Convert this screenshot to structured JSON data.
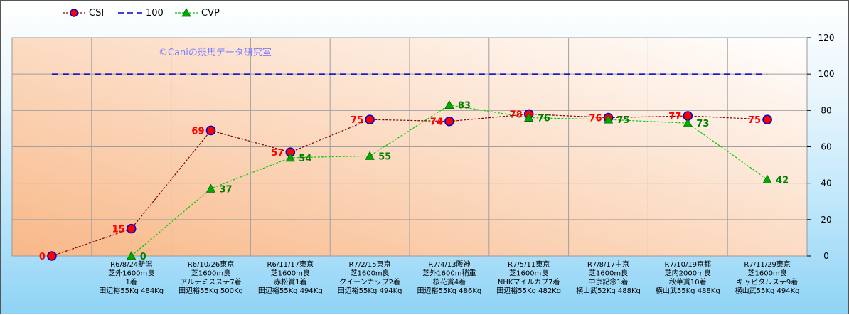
{
  "chart_data": {
    "type": "line",
    "watermark": "©Caniの競馬データ研究室",
    "categories": [
      "",
      "R6/8/24新潟|芝外1600m良|1着|田辺裕55Kg 484Kg",
      "R6/10/26東京|芝1600m良|アルテミスステ7着|田辺裕55Kg 500Kg",
      "R6/11/17東京|芝1600m良|赤松賞1着|田辺裕55Kg 494Kg",
      "R7/2/15東京|芝1600m良|クイーンカップ2着|田辺裕55Kg 494Kg",
      "R7/4/13阪神|芝外1600m稍重|桜花賞4着|田辺裕55Kg 486Kg",
      "R7/5/11東京|芝1600m良|NHKマイルカプ7着|田辺裕55Kg 482Kg",
      "R7/8/17中京|芝1600m良|中京記念1着|横山武52Kg 488Kg",
      "R7/10/19京都|芝内2000m良|秋華賞10着|横山武55Kg 488Kg",
      "R7/11/29東京|芝1600m良|キャピタルステ9着|横山武55Kg 494Kg"
    ],
    "series": [
      {
        "name": "CSI",
        "color": "#800000",
        "marker_color": "#ff0000",
        "values": [
          0,
          15,
          69,
          57,
          75,
          74,
          78,
          76,
          77,
          75
        ]
      },
      {
        "name": "100",
        "color": "#0000cc",
        "values": [
          100,
          100,
          100,
          100,
          100,
          100,
          100,
          100,
          100,
          100
        ]
      },
      {
        "name": "CVP",
        "color": "#00cc00",
        "marker_color": "#00aa00",
        "values": [
          null,
          0,
          37,
          54,
          55,
          83,
          76,
          75,
          73,
          42
        ]
      }
    ],
    "y_ticks": [
      "0",
      "20",
      "40",
      "60",
      "80",
      "100",
      "120"
    ],
    "ylim": [
      0,
      120
    ],
    "grid": true,
    "legend_position": "top-left",
    "plot_background": [
      "#ffffff",
      "#f8b888"
    ]
  }
}
